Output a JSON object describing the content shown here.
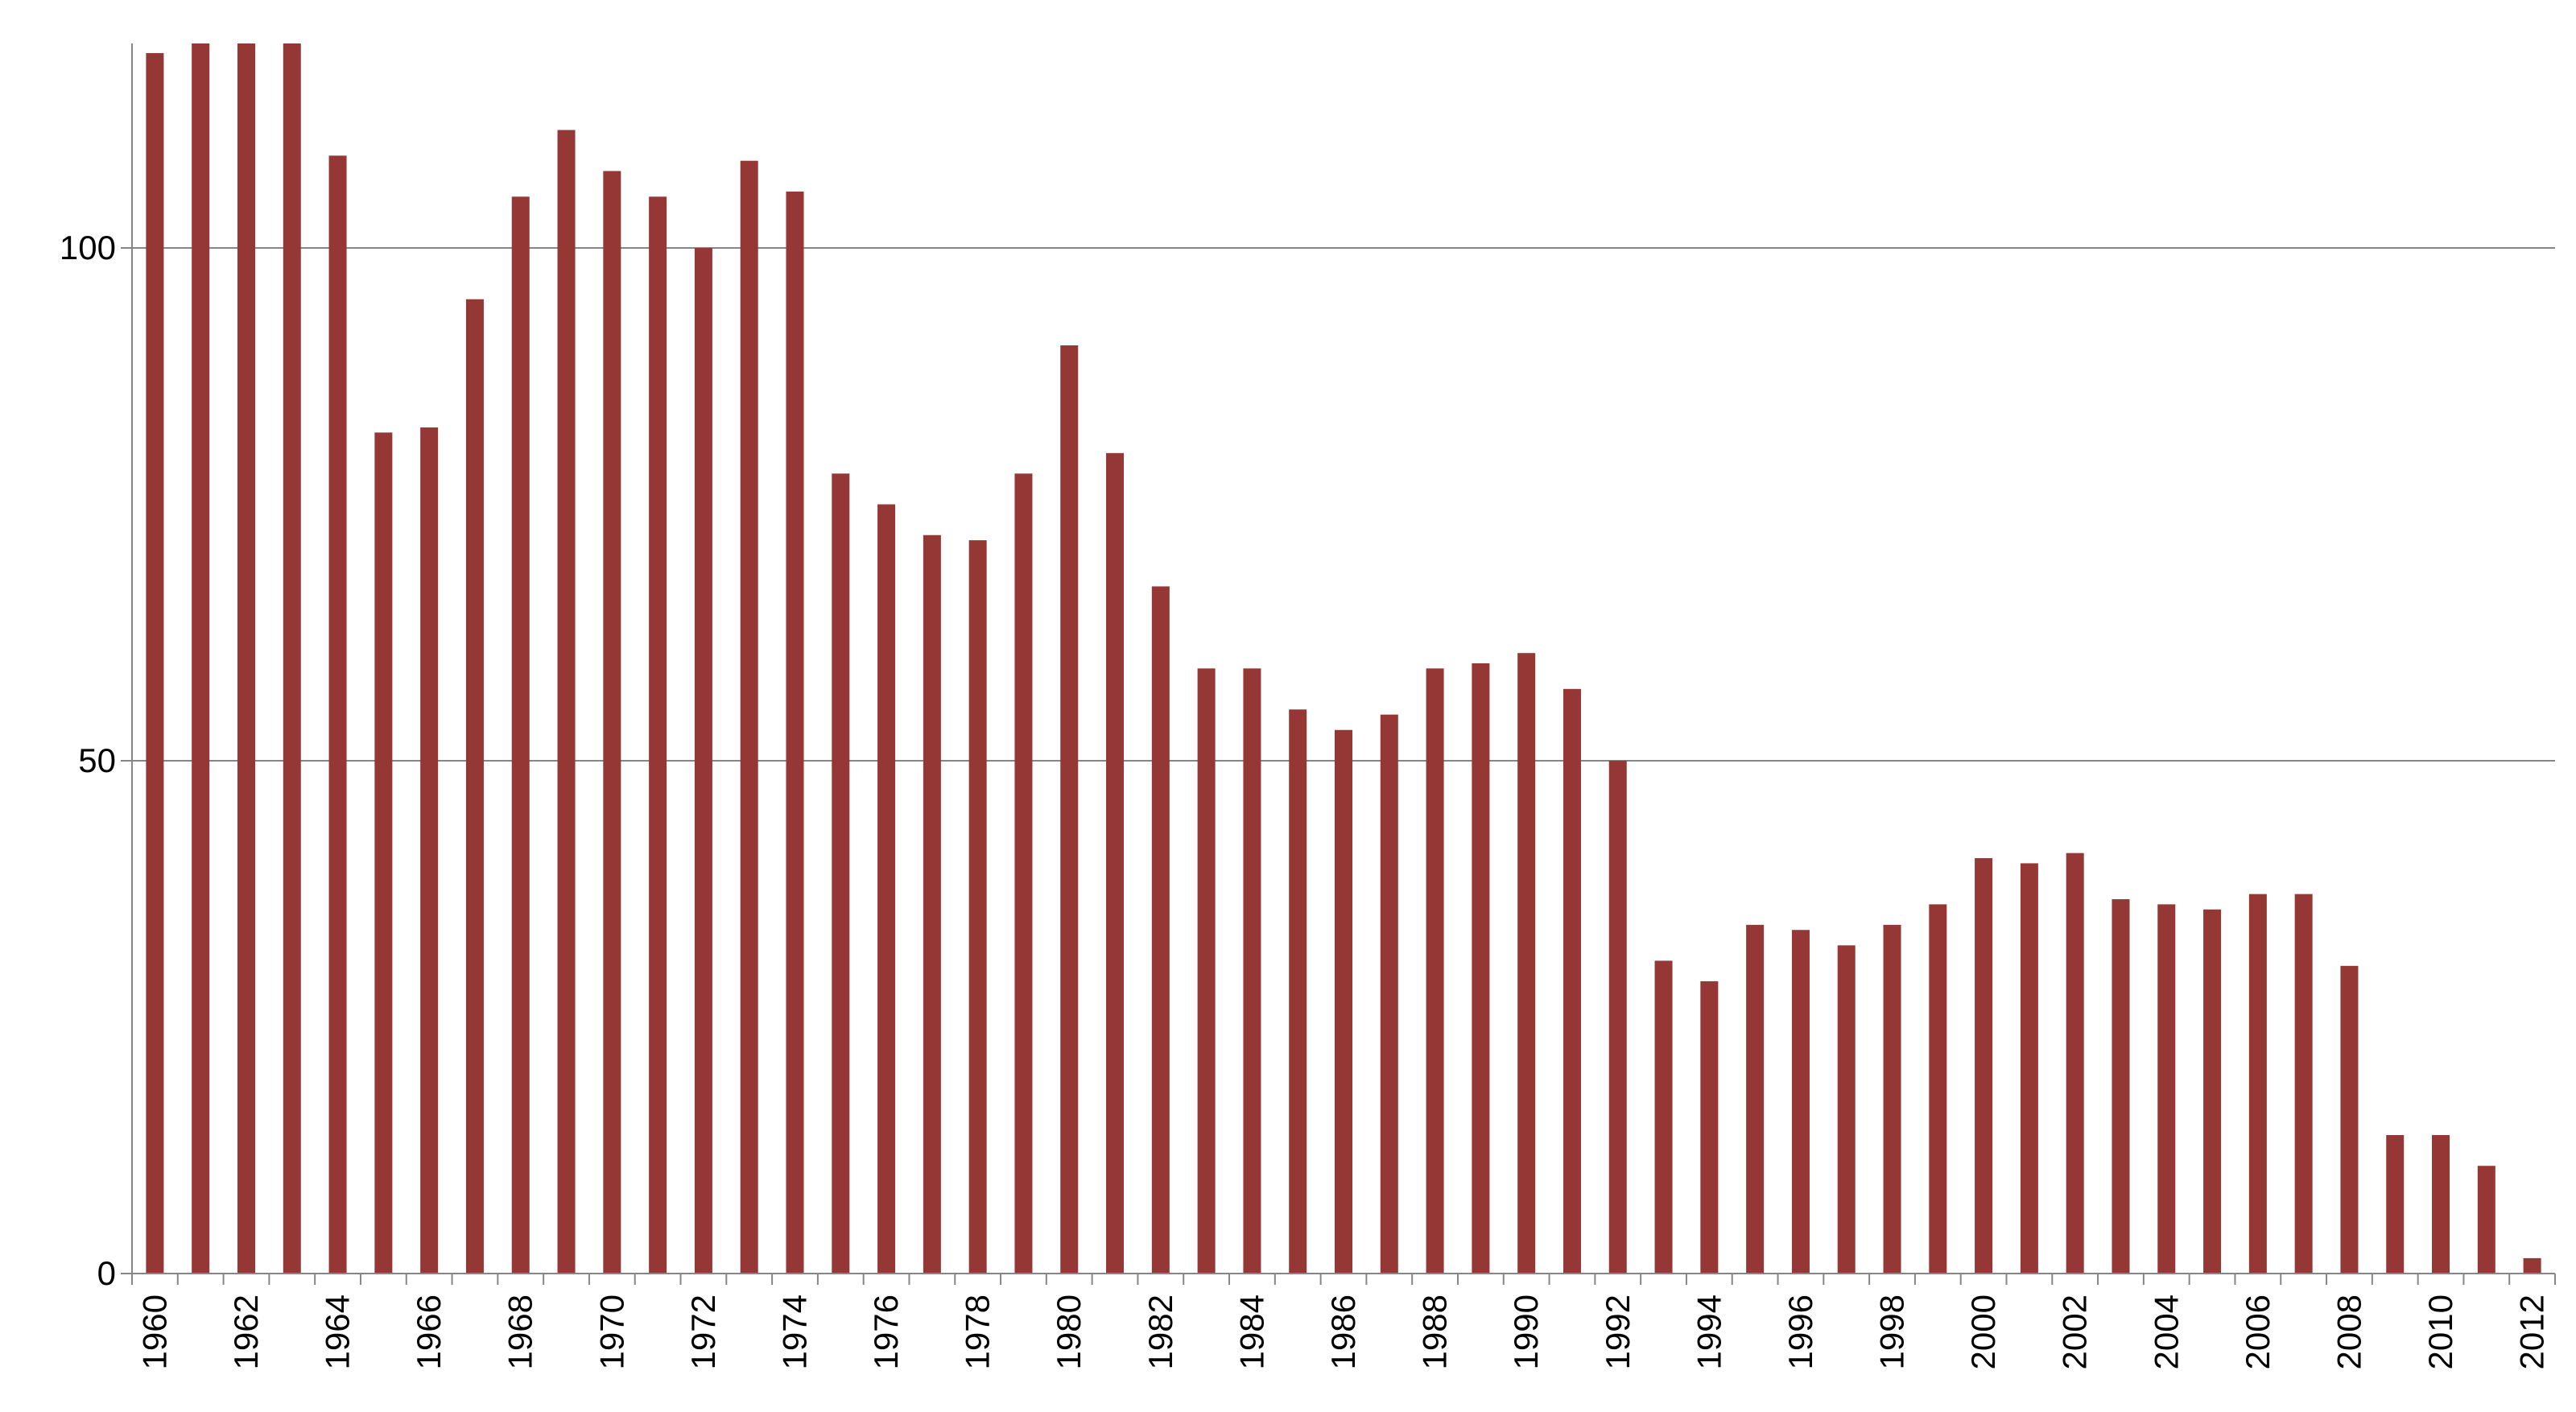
{
  "chart_data": {
    "type": "bar",
    "title": "",
    "xlabel": "",
    "ylabel": "",
    "ylim": [
      0,
      120
    ],
    "yticks": [
      0,
      50,
      100
    ],
    "grid": "horizontal at y ticks",
    "legend": "none",
    "bar_color": "#953735",
    "grid_color": "#868686",
    "categories": [
      "1960",
      "1961",
      "1962",
      "1963",
      "1964",
      "1965",
      "1966",
      "1967",
      "1968",
      "1969",
      "1970",
      "1971",
      "1972",
      "1973",
      "1974",
      "1975",
      "1976",
      "1977",
      "1978",
      "1979",
      "1980",
      "1981",
      "1982",
      "1983",
      "1984",
      "1985",
      "1986",
      "1987",
      "1988",
      "1989",
      "1990",
      "1991",
      "1992",
      "1993",
      "1994",
      "1995",
      "1996",
      "1997",
      "1998",
      "1999",
      "2000",
      "2001",
      "2002",
      "2003",
      "2004",
      "2005",
      "2006",
      "2007",
      "2008",
      "2009",
      "2010",
      "2011",
      "2012"
    ],
    "xtick_labels": [
      "1960",
      "",
      "1962",
      "",
      "1964",
      "",
      "1966",
      "",
      "1968",
      "",
      "1970",
      "",
      "1972",
      "",
      "1974",
      "",
      "1976",
      "",
      "1978",
      "",
      "1980",
      "",
      "1982",
      "",
      "1984",
      "",
      "1986",
      "",
      "1988",
      "",
      "1990",
      "",
      "1992",
      "",
      "1994",
      "",
      "1996",
      "",
      "1998",
      "",
      "2000",
      "",
      "2002",
      "",
      "2004",
      "",
      "2006",
      "",
      "2008",
      "",
      "2010",
      "",
      "2012"
    ],
    "values": [
      119,
      120,
      120,
      120,
      109,
      82,
      82.5,
      95,
      105,
      111.5,
      107.5,
      105,
      100,
      108.5,
      105.5,
      78,
      75,
      72,
      71.5,
      78,
      90.5,
      80,
      67,
      59,
      59,
      55,
      53,
      54.5,
      59,
      59.5,
      60.5,
      57,
      50,
      30.5,
      28.5,
      34,
      33.5,
      32,
      34,
      36,
      40.5,
      40,
      41,
      36.5,
      36,
      35.5,
      37,
      37,
      30,
      13.5,
      13.5,
      10.5,
      1.5
    ]
  }
}
